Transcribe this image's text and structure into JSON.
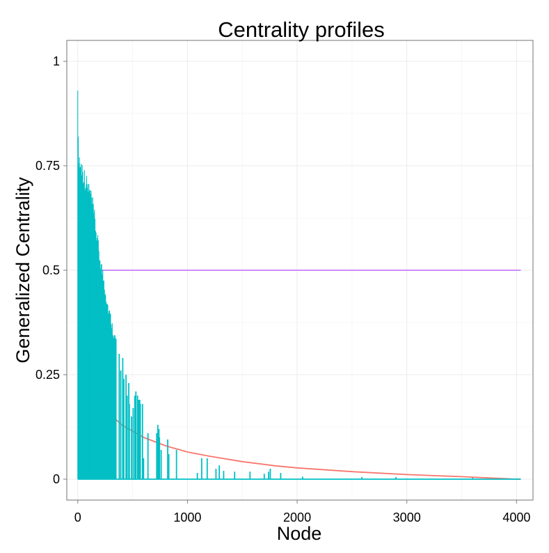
{
  "chart_data": {
    "type": "line",
    "title": "Centrality profiles",
    "xlabel": "Node",
    "ylabel": "Generalized Centrality",
    "xlim": [
      -100,
      4150
    ],
    "ylim": [
      -0.05,
      1.05
    ],
    "grid": true,
    "legend": "none",
    "x_ticks": [
      {
        "value": 0,
        "label": "0"
      },
      {
        "value": 1000,
        "label": "1000"
      },
      {
        "value": 2000,
        "label": "2000"
      },
      {
        "value": 3000,
        "label": "3000"
      },
      {
        "value": 4000,
        "label": "4000"
      }
    ],
    "y_ticks": [
      {
        "value": 0,
        "label": "0"
      },
      {
        "value": 0.25,
        "label": "0.25"
      },
      {
        "value": 0.5,
        "label": "0.5"
      },
      {
        "value": 0.75,
        "label": "0.75"
      },
      {
        "value": 1,
        "label": "1"
      }
    ],
    "series": [
      {
        "color": "#F8766D",
        "style": "line",
        "x": [
          0,
          100,
          200,
          300,
          400,
          500,
          600,
          700,
          800,
          1000,
          1200,
          1500,
          1800,
          2000,
          2500,
          3000,
          3500,
          4000,
          4039
        ],
        "y": [
          0.5,
          0.4,
          0.26,
          0.155,
          0.13,
          0.115,
          0.1,
          0.09,
          0.08,
          0.065,
          0.055,
          0.042,
          0.032,
          0.027,
          0.018,
          0.011,
          0.006,
          0.0,
          0.0
        ]
      },
      {
        "color": "#C77CFF",
        "style": "line",
        "x": [
          0,
          4039
        ],
        "y": [
          0.5,
          0.5
        ]
      },
      {
        "color": "#00BFC4",
        "style": "spikes",
        "envelope_x": [
          0,
          3,
          10,
          20,
          40,
          60,
          80,
          100,
          120,
          140,
          160,
          180,
          200,
          220,
          240,
          260,
          280,
          300,
          320,
          340,
          355
        ],
        "envelope_y": [
          1.0,
          0.83,
          0.81,
          0.78,
          0.77,
          0.75,
          0.73,
          0.72,
          0.7,
          0.67,
          0.63,
          0.59,
          0.55,
          0.52,
          0.49,
          0.45,
          0.42,
          0.4,
          0.37,
          0.35,
          0.34
        ],
        "spikes_x": [
          378,
          392,
          410,
          420,
          440,
          450,
          465,
          470,
          490,
          505,
          520,
          530,
          545,
          555,
          565,
          570,
          590,
          600,
          640,
          720,
          730,
          740,
          745,
          760,
          820,
          830,
          900,
          1090,
          1130,
          1180,
          1260,
          1290,
          1330,
          1430,
          1570,
          1700,
          1740,
          1755,
          1850,
          2050,
          2590,
          2900,
          3600
        ],
        "spikes_y": [
          0.3,
          0.26,
          0.29,
          0.24,
          0.25,
          0.2,
          0.23,
          0.18,
          0.15,
          0.17,
          0.2,
          0.21,
          0.2,
          0.19,
          0.19,
          0.18,
          0.18,
          0.05,
          0.11,
          0.11,
          0.13,
          0.12,
          0.1,
          0.07,
          0.095,
          0.06,
          0.07,
          0.015,
          0.05,
          0.05,
          0.025,
          0.033,
          0.02,
          0.018,
          0.018,
          0.013,
          0.018,
          0.025,
          0.015,
          0.006,
          0.005,
          0.005,
          0.004
        ]
      }
    ]
  }
}
